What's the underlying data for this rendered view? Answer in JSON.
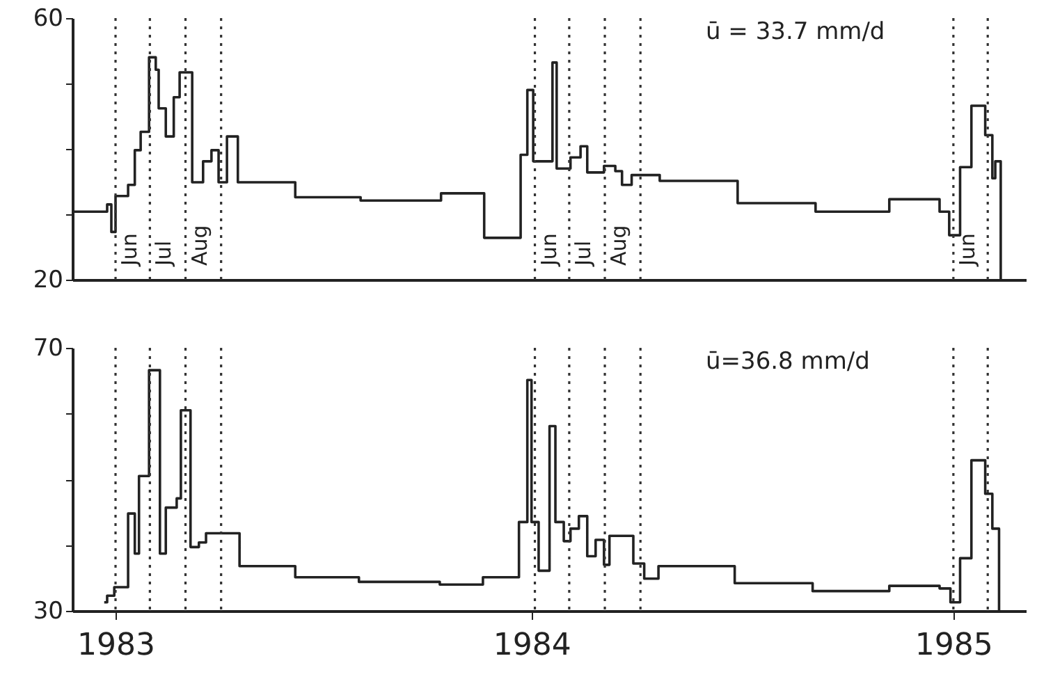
{
  "chart_data": [
    {
      "type": "step",
      "xlim": [
        1983.311,
        1985.587
      ],
      "ylim": [
        20,
        60
      ],
      "yticks": [
        20,
        {
          "value": 30,
          "label": null
        },
        {
          "value": 40,
          "label": null
        },
        {
          "value": 50,
          "label": null
        },
        60
      ],
      "tick_labels": "y",
      "grid": false,
      "x": [
        1983.314,
        1983.394,
        1983.404,
        1983.414,
        1983.444,
        1983.46,
        1983.474,
        1983.494,
        1983.51,
        1983.517,
        1983.534,
        1983.553,
        1983.567,
        1983.597,
        1983.623,
        1983.643,
        1983.66,
        1983.68,
        1983.706,
        1983.843,
        1983.999,
        1984.191,
        1984.294,
        1984.381,
        1984.397,
        1984.411,
        1984.457,
        1984.467,
        1984.5,
        1984.524,
        1984.54,
        1984.58,
        1984.607,
        1984.623,
        1984.646,
        1984.713,
        1984.899,
        1985.085,
        1985.261,
        1985.381,
        1985.404,
        1985.43,
        1985.457,
        1985.49,
        1985.507,
        1985.514,
        1985.527
      ],
      "series": [
        {
          "color": "#222222",
          "values": [
            30.4,
            31.5,
            27.3,
            32.8,
            34.5,
            39.8,
            42.6,
            54.0,
            52.1,
            46.2,
            41.9,
            47.9,
            51.7,
            34.9,
            38.1,
            39.8,
            34.9,
            41.9,
            34.9,
            32.6,
            32.1,
            33.2,
            26.4,
            39.1,
            49.0,
            38.1,
            53.2,
            37.0,
            38.7,
            40.4,
            36.4,
            37.4,
            36.6,
            34.5,
            36.0,
            35.1,
            31.7,
            30.4,
            32.3,
            30.4,
            26.8,
            37.2,
            46.6,
            42.1,
            35.5,
            38.1,
            20
          ]
        }
      ],
      "ref_lines": [
        {
          "axis": "x",
          "value": 1983.414,
          "label": "Jun",
          "line_style": "dotted"
        },
        {
          "axis": "x",
          "value": 1983.496,
          "label": "Jul",
          "line_style": "dotted"
        },
        {
          "axis": "x",
          "value": 1983.581,
          "label": "Aug",
          "line_style": "dotted"
        },
        {
          "axis": "x",
          "value": 1983.666,
          "label": null,
          "line_style": "dotted"
        },
        {
          "axis": "x",
          "value": 1984.415,
          "label": "Jun",
          "line_style": "dotted"
        },
        {
          "axis": "x",
          "value": 1984.497,
          "label": "Jul",
          "line_style": "dotted"
        },
        {
          "axis": "x",
          "value": 1984.582,
          "label": "Aug",
          "line_style": "dotted"
        },
        {
          "axis": "x",
          "value": 1984.667,
          "label": null,
          "line_style": "dotted"
        },
        {
          "axis": "x",
          "value": 1985.414,
          "label": "Jun",
          "line_style": "dotted"
        },
        {
          "axis": "x",
          "value": 1985.496,
          "label": null,
          "line_style": "dotted"
        }
      ],
      "annotations": [
        "ū = 33.7 mm/d"
      ]
    },
    {
      "type": "step",
      "xlim": [
        1983.311,
        1985.587
      ],
      "xticks": [
        {
          "value": 1983.414,
          "label": "1983"
        },
        {
          "value": 1984.407,
          "label": "1984"
        },
        {
          "value": 1985.414,
          "label": "1985"
        }
      ],
      "ylim": [
        30,
        70
      ],
      "yticks": [
        30,
        {
          "value": 40,
          "label": null
        },
        {
          "value": 50,
          "label": null
        },
        {
          "value": 60,
          "label": null
        },
        70
      ],
      "grid": false,
      "x": [
        1983.387,
        1983.394,
        1983.411,
        1983.444,
        1983.46,
        1983.47,
        1983.494,
        1983.52,
        1983.534,
        1983.56,
        1983.57,
        1983.593,
        1983.613,
        1983.63,
        1983.71,
        1983.843,
        1983.995,
        1984.188,
        1984.291,
        1984.377,
        1984.397,
        1984.407,
        1984.424,
        1984.45,
        1984.464,
        1984.484,
        1984.5,
        1984.52,
        1984.54,
        1984.56,
        1984.58,
        1984.593,
        1984.65,
        1984.676,
        1984.71,
        1984.892,
        1985.078,
        1985.261,
        1985.381,
        1985.407,
        1985.43,
        1985.457,
        1985.49,
        1985.507,
        1985.523
      ],
      "series": [
        {
          "color": "#222222",
          "values": [
            31.3,
            32.3,
            33.6,
            44.8,
            38.7,
            50.5,
            66.6,
            38.7,
            45.7,
            47.1,
            60.5,
            39.7,
            40.4,
            41.8,
            36.8,
            35.1,
            34.4,
            34.0,
            35.1,
            43.5,
            65.1,
            43.5,
            36.1,
            58.1,
            43.5,
            40.6,
            42.5,
            44.4,
            38.3,
            40.8,
            37.0,
            41.4,
            37.2,
            34.9,
            36.8,
            34.2,
            33.0,
            33.8,
            33.4,
            31.3,
            38.0,
            52.9,
            47.8,
            42.5,
            30
          ]
        }
      ],
      "ref_lines": [
        {
          "axis": "x",
          "value": 1983.414,
          "label": null,
          "line_style": "dotted"
        },
        {
          "axis": "x",
          "value": 1983.496,
          "label": null,
          "line_style": "dotted"
        },
        {
          "axis": "x",
          "value": 1983.581,
          "label": null,
          "line_style": "dotted"
        },
        {
          "axis": "x",
          "value": 1983.666,
          "label": null,
          "line_style": "dotted"
        },
        {
          "axis": "x",
          "value": 1984.415,
          "label": null,
          "line_style": "dotted"
        },
        {
          "axis": "x",
          "value": 1984.497,
          "label": null,
          "line_style": "dotted"
        },
        {
          "axis": "x",
          "value": 1984.582,
          "label": null,
          "line_style": "dotted"
        },
        {
          "axis": "x",
          "value": 1984.667,
          "label": null,
          "line_style": "dotted"
        },
        {
          "axis": "x",
          "value": 1985.414,
          "label": null,
          "line_style": "dotted"
        },
        {
          "axis": "x",
          "value": 1985.496,
          "label": null,
          "line_style": "dotted"
        }
      ],
      "annotations": [
        "ū=36.8 mm/d"
      ]
    }
  ]
}
